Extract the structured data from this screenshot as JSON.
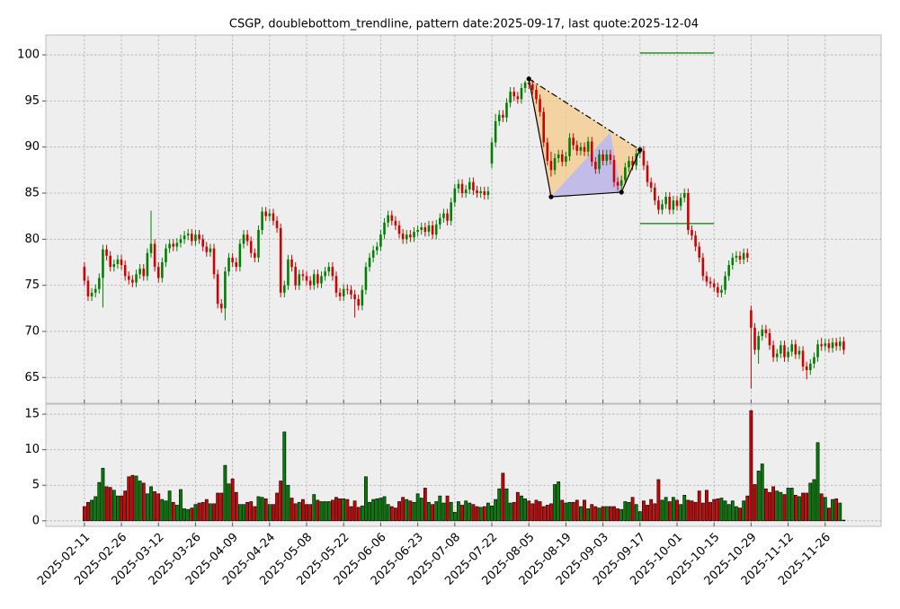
{
  "chart_data": [
    {
      "type": "candlestick",
      "title": "CSGP, doublebottom_trendline, pattern date:2025-09-17, last quote:2025-12-04",
      "up_color": "#008000",
      "down_color": "#d00000",
      "grid": true,
      "xlim": [
        -10.4,
        215.1
      ],
      "ylim": [
        62.2,
        102.15
      ],
      "xticks": [
        {
          "value": 0,
          "label": "2025-02-11"
        },
        {
          "value": 10,
          "label": "2025-02-26"
        },
        {
          "value": 20,
          "label": "2025-03-12"
        },
        {
          "value": 30,
          "label": "2025-03-26"
        },
        {
          "value": 40,
          "label": "2025-04-09"
        },
        {
          "value": 50,
          "label": "2025-04-24"
        },
        {
          "value": 60,
          "label": "2025-05-08"
        },
        {
          "value": 70,
          "label": "2025-05-22"
        },
        {
          "value": 80,
          "label": "2025-06-06"
        },
        {
          "value": 90,
          "label": "2025-06-23"
        },
        {
          "value": 100,
          "label": "2025-07-08"
        },
        {
          "value": 110,
          "label": "2025-07-22"
        },
        {
          "value": 120,
          "label": "2025-08-05"
        },
        {
          "value": 130,
          "label": "2025-08-19"
        },
        {
          "value": 140,
          "label": "2025-09-03"
        },
        {
          "value": 150,
          "label": "2025-09-17"
        },
        {
          "value": 160,
          "label": "2025-10-01"
        },
        {
          "value": 170,
          "label": "2025-10-15"
        },
        {
          "value": 180,
          "label": "2025-10-29"
        },
        {
          "value": 190,
          "label": "2025-11-12"
        },
        {
          "value": 200,
          "label": "2025-11-26"
        }
      ],
      "yticks": [
        65,
        70,
        75,
        80,
        85,
        90,
        95,
        100
      ],
      "open": [
        77.0,
        75.5,
        73.8,
        74.2,
        74.6,
        75.8,
        78.9,
        78.2,
        77.0,
        77.3,
        77.8,
        77.2,
        76.0,
        75.6,
        75.3,
        76.2,
        76.8,
        76.0,
        78.5,
        79.5,
        77.0,
        75.8,
        77.5,
        79.0,
        79.5,
        79.2,
        79.6,
        80.0,
        80.4,
        80.6,
        79.8,
        80.5,
        80.0,
        79.2,
        78.6,
        79.0,
        76.2,
        73.0,
        72.5,
        76.5,
        78.0,
        77.5,
        77.0,
        79.5,
        80.5,
        79.8,
        78.5,
        78.0,
        81.0,
        83.0,
        82.5,
        82.8,
        82.0,
        81.2,
        74.2,
        75.0,
        77.8,
        77.0,
        75.0,
        76.2,
        76.0,
        75.5,
        75.0,
        76.2,
        75.2,
        76.0,
        76.5,
        77.0,
        76.0,
        74.2,
        73.8,
        74.6,
        74.5,
        74.0,
        73.5,
        72.8,
        74.5,
        77.0,
        78.0,
        78.8,
        79.2,
        80.5,
        81.8,
        82.6,
        82.0,
        81.5,
        80.6,
        80.0,
        80.5,
        80.2,
        80.8,
        81.0,
        81.3,
        80.8,
        81.5,
        80.5,
        81.6,
        82.3,
        82.8,
        82.0,
        84.0,
        85.5,
        86.0,
        85.0,
        85.4,
        86.2,
        85.3,
        85.0,
        85.2,
        84.8,
        88.2,
        90.5,
        92.8,
        93.5,
        93.2,
        94.8,
        96.0,
        95.5,
        95.2,
        96.4,
        97.0,
        96.8,
        96.2,
        95.2,
        93.8,
        90.5,
        88.5,
        87.5,
        88.8,
        89.2,
        88.4,
        89.0,
        91.0,
        90.2,
        89.6,
        90.0,
        89.5,
        90.6,
        88.4,
        87.6,
        89.2,
        88.5,
        89.2,
        88.6,
        86.2,
        85.8,
        86.4,
        87.8,
        88.5,
        88.0,
        89.3,
        89.6,
        88.0,
        86.2,
        85.6,
        84.2,
        83.2,
        83.8,
        84.6,
        83.2,
        84.2,
        83.6,
        84.5,
        85.0,
        81.0,
        80.4,
        79.2,
        78.0,
        76.0,
        75.4,
        75.2,
        74.8,
        74.2,
        74.5,
        76.0,
        77.2,
        78.0,
        78.2,
        77.8,
        78.5,
        72.3,
        70.4,
        68.0,
        69.5,
        70.2,
        69.8,
        68.5,
        67.2,
        67.6,
        68.5,
        67.2,
        67.8,
        68.6,
        67.5,
        67.9,
        66.2,
        65.8,
        66.5,
        67.2,
        68.6,
        68.4,
        68.7,
        68.2,
        68.8,
        68.4,
        68.9
      ],
      "high": [
        77.5,
        76.0,
        74.7,
        75.1,
        76.3,
        79.4,
        79.4,
        78.7,
        77.8,
        78.3,
        78.3,
        77.7,
        76.5,
        76.1,
        76.7,
        77.3,
        77.3,
        79.0,
        83.1,
        80.0,
        77.5,
        78.0,
        79.5,
        80.0,
        80.0,
        80.1,
        80.5,
        80.9,
        81.1,
        81.1,
        81.0,
        81.0,
        80.5,
        79.7,
        79.5,
        79.5,
        76.7,
        73.5,
        77.0,
        78.5,
        78.5,
        78.0,
        80.0,
        81.0,
        81.0,
        80.3,
        79.0,
        81.5,
        83.5,
        83.5,
        83.3,
        83.3,
        82.5,
        81.7,
        75.5,
        78.3,
        78.3,
        77.5,
        76.7,
        76.7,
        76.5,
        76.0,
        76.7,
        76.7,
        76.5,
        77.0,
        77.5,
        77.5,
        76.5,
        74.7,
        75.1,
        75.1,
        75.0,
        74.5,
        74.0,
        75.0,
        77.5,
        78.5,
        79.3,
        79.7,
        81.0,
        82.3,
        83.1,
        83.1,
        82.5,
        82.0,
        81.1,
        81.0,
        81.0,
        81.3,
        81.5,
        81.8,
        81.8,
        82.0,
        82.0,
        82.1,
        82.8,
        83.3,
        83.3,
        84.5,
        86.0,
        86.5,
        86.5,
        85.9,
        86.7,
        86.7,
        85.8,
        85.7,
        85.7,
        85.7,
        91.0,
        93.6,
        94.0,
        94.0,
        95.3,
        96.5,
        96.5,
        96.0,
        96.9,
        97.2,
        97.4,
        97.3,
        96.7,
        95.7,
        94.3,
        91.0,
        89.5,
        89.3,
        89.7,
        89.7,
        89.5,
        91.5,
        91.5,
        90.7,
        90.5,
        90.5,
        91.1,
        91.1,
        88.9,
        89.7,
        89.7,
        89.7,
        89.7,
        89.1,
        86.7,
        86.9,
        88.3,
        89.0,
        89.0,
        89.8,
        90.1,
        90.1,
        88.5,
        86.7,
        86.1,
        84.7,
        84.3,
        85.1,
        85.1,
        84.7,
        84.7,
        85.0,
        85.5,
        85.5,
        81.5,
        80.9,
        79.7,
        78.5,
        76.5,
        75.9,
        75.7,
        75.3,
        75.0,
        76.5,
        77.7,
        78.5,
        78.7,
        78.7,
        79.0,
        79.0,
        72.8,
        70.9,
        70.0,
        70.7,
        70.7,
        70.3,
        69.0,
        68.1,
        69.0,
        69.0,
        68.3,
        69.1,
        69.1,
        68.4,
        68.4,
        66.7,
        67.0,
        67.7,
        69.1,
        69.3,
        69.2,
        69.2,
        69.3,
        69.3,
        69.4,
        69.4
      ],
      "low": [
        75.0,
        73.3,
        73.3,
        73.7,
        74.1,
        72.6,
        77.7,
        76.5,
        76.5,
        76.8,
        76.7,
        75.5,
        75.1,
        74.8,
        74.8,
        75.7,
        75.5,
        75.5,
        78.0,
        76.5,
        75.3,
        75.3,
        77.0,
        78.5,
        78.7,
        78.7,
        79.1,
        79.5,
        79.9,
        79.3,
        79.3,
        79.5,
        78.7,
        78.1,
        78.1,
        75.7,
        72.5,
        72.0,
        71.2,
        76.0,
        77.0,
        76.5,
        76.5,
        79.0,
        79.3,
        78.0,
        77.5,
        77.5,
        80.5,
        82.0,
        82.0,
        81.5,
        80.7,
        73.7,
        73.7,
        74.5,
        76.5,
        74.5,
        74.5,
        75.5,
        75.0,
        74.5,
        74.5,
        74.7,
        74.7,
        75.5,
        76.0,
        75.5,
        73.7,
        73.3,
        73.3,
        74.0,
        73.5,
        71.5,
        72.3,
        72.3,
        74.0,
        76.5,
        77.5,
        78.3,
        78.7,
        80.0,
        81.3,
        81.5,
        81.0,
        80.1,
        79.5,
        79.5,
        79.7,
        79.7,
        80.3,
        80.5,
        80.3,
        80.3,
        80.0,
        80.0,
        81.1,
        81.8,
        81.5,
        81.5,
        83.5,
        85.0,
        84.5,
        84.5,
        84.9,
        84.8,
        84.5,
        84.5,
        84.3,
        84.3,
        87.7,
        90.0,
        92.3,
        92.7,
        92.7,
        94.3,
        95.0,
        94.7,
        94.7,
        95.9,
        96.3,
        95.7,
        94.7,
        93.3,
        90.0,
        88.0,
        86.8,
        87.0,
        88.3,
        87.9,
        87.9,
        88.5,
        89.7,
        89.1,
        89.1,
        89.0,
        89.0,
        87.9,
        87.1,
        87.1,
        88.0,
        88.0,
        88.1,
        85.7,
        85.3,
        85.1,
        85.9,
        87.3,
        87.5,
        87.5,
        88.8,
        87.5,
        85.7,
        85.1,
        83.7,
        82.7,
        82.7,
        83.3,
        82.7,
        82.7,
        83.1,
        83.1,
        84.0,
        80.5,
        79.9,
        78.7,
        77.5,
        75.5,
        74.9,
        74.7,
        74.3,
        73.7,
        73.7,
        74.0,
        75.5,
        76.7,
        77.5,
        77.3,
        77.3,
        77.5,
        63.8,
        67.5,
        66.5,
        69.0,
        69.3,
        68.0,
        66.7,
        66.7,
        67.1,
        66.7,
        66.7,
        67.3,
        67.0,
        67.0,
        65.7,
        64.8,
        65.3,
        66.0,
        66.7,
        67.9,
        67.9,
        67.7,
        67.7,
        67.9,
        67.9,
        67.5
      ],
      "close": [
        75.5,
        73.8,
        74.2,
        74.6,
        75.8,
        78.9,
        78.2,
        77.0,
        77.3,
        77.8,
        77.2,
        76.0,
        75.6,
        75.3,
        76.2,
        76.8,
        76.0,
        78.5,
        79.5,
        77.0,
        75.8,
        77.5,
        79.0,
        79.5,
        79.2,
        79.6,
        80.0,
        80.4,
        80.6,
        79.8,
        80.5,
        80.0,
        79.2,
        78.6,
        79.0,
        76.2,
        73.0,
        72.5,
        76.5,
        78.0,
        77.5,
        77.0,
        79.5,
        80.5,
        79.8,
        78.5,
        78.0,
        81.0,
        83.0,
        82.5,
        82.8,
        82.0,
        81.2,
        74.2,
        75.0,
        77.8,
        77.0,
        75.0,
        76.2,
        76.0,
        75.5,
        75.0,
        76.2,
        75.2,
        76.0,
        76.5,
        77.0,
        76.0,
        74.2,
        73.8,
        74.6,
        74.5,
        74.0,
        73.5,
        72.8,
        74.5,
        77.0,
        78.0,
        78.8,
        79.2,
        80.5,
        81.8,
        82.6,
        82.0,
        81.5,
        80.6,
        80.0,
        80.5,
        80.2,
        80.8,
        81.0,
        81.3,
        80.8,
        81.5,
        80.5,
        81.6,
        82.3,
        82.8,
        82.0,
        84.0,
        85.5,
        86.0,
        85.0,
        85.4,
        86.2,
        85.3,
        85.0,
        85.2,
        84.8,
        85.2,
        90.5,
        92.8,
        93.5,
        93.2,
        94.8,
        96.0,
        95.5,
        95.2,
        96.4,
        97.0,
        96.8,
        96.2,
        95.2,
        93.8,
        90.5,
        88.5,
        87.5,
        88.8,
        89.2,
        88.4,
        89.0,
        91.0,
        90.2,
        89.6,
        90.0,
        89.5,
        90.6,
        88.4,
        87.6,
        89.2,
        88.5,
        89.2,
        88.6,
        86.2,
        85.8,
        86.4,
        87.8,
        88.5,
        88.0,
        89.3,
        89.6,
        88.0,
        86.2,
        85.6,
        84.2,
        83.2,
        83.8,
        84.6,
        83.2,
        84.2,
        83.6,
        84.5,
        85.0,
        81.0,
        80.4,
        79.2,
        78.0,
        76.0,
        75.4,
        75.2,
        74.8,
        74.2,
        74.5,
        76.0,
        77.2,
        78.0,
        78.2,
        77.8,
        78.5,
        78.0,
        70.4,
        68.0,
        69.5,
        70.2,
        69.8,
        68.5,
        67.2,
        67.6,
        68.5,
        67.2,
        67.8,
        68.6,
        67.5,
        67.9,
        66.2,
        65.8,
        66.5,
        67.2,
        68.6,
        68.4,
        68.7,
        68.2,
        68.8,
        68.4,
        68.9,
        68.0
      ],
      "pattern": {
        "x": [
          120,
          126,
          145,
          150
        ],
        "y": [
          97.4,
          84.6,
          85.1,
          89.7
        ],
        "apex_x": 142,
        "apex_y": 91.6,
        "fill_color": "#f5c98a",
        "apex_fill_color": "#b8b8f5"
      },
      "levels": [
        {
          "y": 100.2,
          "x": [
            150,
            170
          ],
          "color": "#008000"
        },
        {
          "y": 81.7,
          "x": [
            150,
            170
          ],
          "color": "#008000"
        }
      ]
    },
    {
      "type": "bar",
      "ylim": [
        -0.78,
        16.4
      ],
      "yticks": [
        0,
        5,
        10,
        15
      ],
      "values": [
        2.0,
        2.6,
        2.9,
        3.4,
        5.4,
        7.4,
        4.8,
        4.7,
        4.3,
        3.5,
        3.5,
        4.2,
        6.2,
        6.4,
        6.3,
        5.6,
        5.3,
        3.8,
        4.8,
        4.1,
        3.8,
        3.0,
        2.8,
        4.2,
        2.6,
        2.2,
        4.4,
        1.7,
        1.6,
        1.8,
        2.3,
        2.5,
        2.6,
        3.0,
        2.4,
        2.4,
        3.9,
        3.9,
        7.8,
        5.2,
        5.9,
        4.0,
        2.3,
        2.3,
        2.6,
        2.7,
        2.0,
        3.4,
        3.3,
        3.1,
        2.3,
        2.3,
        3.9,
        5.6,
        12.5,
        5.0,
        3.2,
        2.4,
        2.6,
        3.0,
        2.3,
        2.3,
        3.7,
        2.9,
        2.7,
        2.7,
        2.7,
        2.9,
        3.3,
        3.1,
        3.1,
        3.0,
        2.0,
        2.8,
        1.9,
        2.1,
        6.2,
        2.6,
        3.0,
        3.1,
        3.2,
        3.4,
        2.3,
        2.0,
        1.8,
        2.7,
        3.3,
        3.0,
        2.8,
        2.6,
        3.8,
        3.2,
        4.6,
        2.6,
        2.3,
        2.7,
        3.5,
        2.5,
        3.5,
        2.6,
        1.2,
        2.7,
        2.2,
        2.8,
        2.5,
        2.3,
        2.0,
        1.9,
        2.0,
        2.5,
        2.1,
        3.0,
        4.5,
        6.7,
        4.5,
        2.5,
        2.6,
        4.0,
        3.5,
        3.1,
        2.8,
        2.4,
        2.9,
        2.7,
        2.0,
        2.2,
        2.4,
        5.1,
        5.5,
        2.9,
        2.5,
        2.6,
        2.6,
        2.9,
        2.0,
        2.9,
        1.7,
        2.3,
        2.0,
        1.8,
        2.0,
        2.0,
        2.0,
        2.0,
        1.7,
        1.6,
        2.7,
        2.6,
        3.3,
        2.3,
        1.3,
        2.8,
        2.2,
        3.0,
        2.4,
        5.8,
        2.9,
        3.3,
        2.7,
        3.3,
        2.9,
        2.3,
        3.6,
        2.9,
        2.8,
        2.6,
        4.2,
        2.5,
        4.3,
        2.6,
        3.0,
        3.1,
        3.2,
        2.8,
        2.3,
        2.8,
        2.0,
        1.8,
        2.8,
        3.5,
        15.5,
        5.1,
        7.0,
        8.0,
        4.5,
        4.0,
        4.8,
        4.2,
        4.0,
        3.7,
        4.6,
        4.6,
        3.6,
        3.4,
        3.9,
        3.9,
        5.3,
        5.8,
        11.0,
        3.8,
        3.3,
        1.8,
        3.0,
        3.1,
        2.5,
        0.1
      ]
    }
  ]
}
